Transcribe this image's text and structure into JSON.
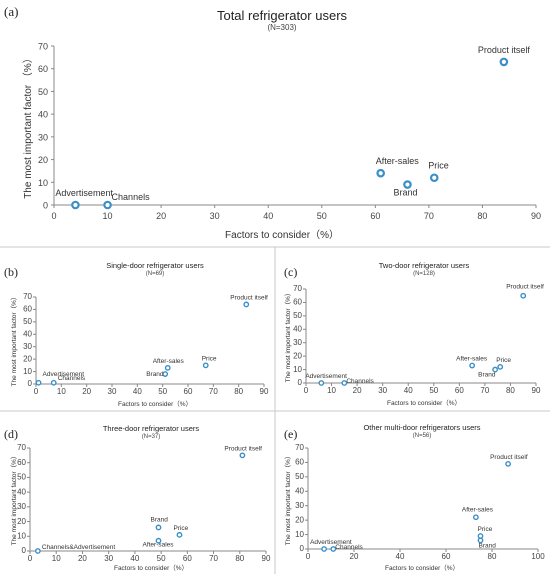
{
  "panels": [
    {
      "panel_label": "(a)",
      "chart_data": {
        "type": "scatter",
        "title": "Total refrigerator users",
        "subtitle": "(N=303)",
        "xlabel": "Factors to consider（%）",
        "ylabel": "The most important factor （%）",
        "xlim": [
          0,
          90
        ],
        "ylim": [
          0,
          70
        ],
        "xticks": [
          0,
          10,
          20,
          30,
          40,
          50,
          60,
          70,
          80,
          90
        ],
        "yticks": [
          0,
          10,
          20,
          30,
          40,
          50,
          60,
          70
        ],
        "points": [
          {
            "label": "Advertisement",
            "x": 4,
            "y": 0
          },
          {
            "label": "Channels",
            "x": 10,
            "y": 0
          },
          {
            "label": "After-sales",
            "x": 61,
            "y": 14
          },
          {
            "label": "Brand",
            "x": 66,
            "y": 9
          },
          {
            "label": "Price",
            "x": 71,
            "y": 12
          },
          {
            "label": "Product itself",
            "x": 84,
            "y": 63
          }
        ]
      }
    },
    {
      "panel_label": "(b)",
      "chart_data": {
        "type": "scatter",
        "title": "Single-door refrigerator users",
        "subtitle": "(N=69)",
        "xlabel": "Factors to consider（%）",
        "ylabel": "The most important factor（%）",
        "xlim": [
          0,
          90
        ],
        "ylim": [
          0,
          70
        ],
        "xticks": [
          0,
          10,
          20,
          30,
          40,
          50,
          60,
          70,
          80,
          90
        ],
        "yticks": [
          0,
          10,
          20,
          30,
          40,
          50,
          60,
          70
        ],
        "points": [
          {
            "label": "Advertisement",
            "x": 1,
            "y": 1
          },
          {
            "label": "Channels",
            "x": 7,
            "y": 1
          },
          {
            "label": "After-sales",
            "x": 52,
            "y": 13
          },
          {
            "label": "Brand",
            "x": 51,
            "y": 8
          },
          {
            "label": "Price",
            "x": 67,
            "y": 15
          },
          {
            "label": "Product itself",
            "x": 83,
            "y": 64
          }
        ]
      }
    },
    {
      "panel_label": "(c)",
      "chart_data": {
        "type": "scatter",
        "title": "Two-door refrigerator users",
        "subtitle": "(N=128)",
        "xlabel": "Factors to consider（%）",
        "ylabel": "The most important factor（%）",
        "xlim": [
          0,
          90
        ],
        "ylim": [
          0,
          70
        ],
        "xticks": [
          0,
          10,
          20,
          30,
          40,
          50,
          60,
          70,
          80,
          90
        ],
        "yticks": [
          0,
          10,
          20,
          30,
          40,
          50,
          60,
          70
        ],
        "points": [
          {
            "label": "Advertisement",
            "x": 6,
            "y": 0
          },
          {
            "label": "Channels",
            "x": 15,
            "y": 0
          },
          {
            "label": "After-sales",
            "x": 65,
            "y": 13
          },
          {
            "label": "Brand",
            "x": 74,
            "y": 10
          },
          {
            "label": "Price",
            "x": 76,
            "y": 12
          },
          {
            "label": "Product itself",
            "x": 85,
            "y": 65
          }
        ]
      }
    },
    {
      "panel_label": "(d)",
      "chart_data": {
        "type": "scatter",
        "title": "Three-door refrigerator users",
        "subtitle": "(N=37)",
        "xlabel": "Factors to consider（%）",
        "ylabel": "The most important factor（%）",
        "xlim": [
          0,
          90
        ],
        "ylim": [
          0,
          70
        ],
        "xticks": [
          0,
          10,
          20,
          30,
          40,
          50,
          60,
          70,
          80,
          90
        ],
        "yticks": [
          0,
          10,
          20,
          30,
          40,
          50,
          60,
          70
        ],
        "points": [
          {
            "label": "Channels&Advertisement",
            "x": 3,
            "y": 0
          },
          {
            "label": "Brand",
            "x": 49,
            "y": 16
          },
          {
            "label": "After-sales",
            "x": 49,
            "y": 7
          },
          {
            "label": "Price",
            "x": 57,
            "y": 11
          },
          {
            "label": "Product itself",
            "x": 81,
            "y": 65
          }
        ]
      }
    },
    {
      "panel_label": "(e)",
      "chart_data": {
        "type": "scatter",
        "title": "Other multi-door refrigerators users",
        "subtitle": "(N=56)",
        "xlabel": "Factors to consider（%）",
        "ylabel": "The most important factor（%）",
        "xlim": [
          0,
          100
        ],
        "ylim": [
          0,
          70
        ],
        "xticks": [
          0,
          20,
          40,
          60,
          80,
          100
        ],
        "yticks": [
          0,
          10,
          20,
          30,
          40,
          50,
          60,
          70
        ],
        "points": [
          {
            "label": "Advertisement",
            "x": 7,
            "y": 0
          },
          {
            "label": "Channels",
            "x": 11,
            "y": 0
          },
          {
            "label": "After-sales",
            "x": 73,
            "y": 22
          },
          {
            "label": "Price",
            "x": 75,
            "y": 9
          },
          {
            "label": "Brand",
            "x": 75,
            "y": 6
          },
          {
            "label": "Product itself",
            "x": 87,
            "y": 59
          }
        ]
      }
    }
  ]
}
